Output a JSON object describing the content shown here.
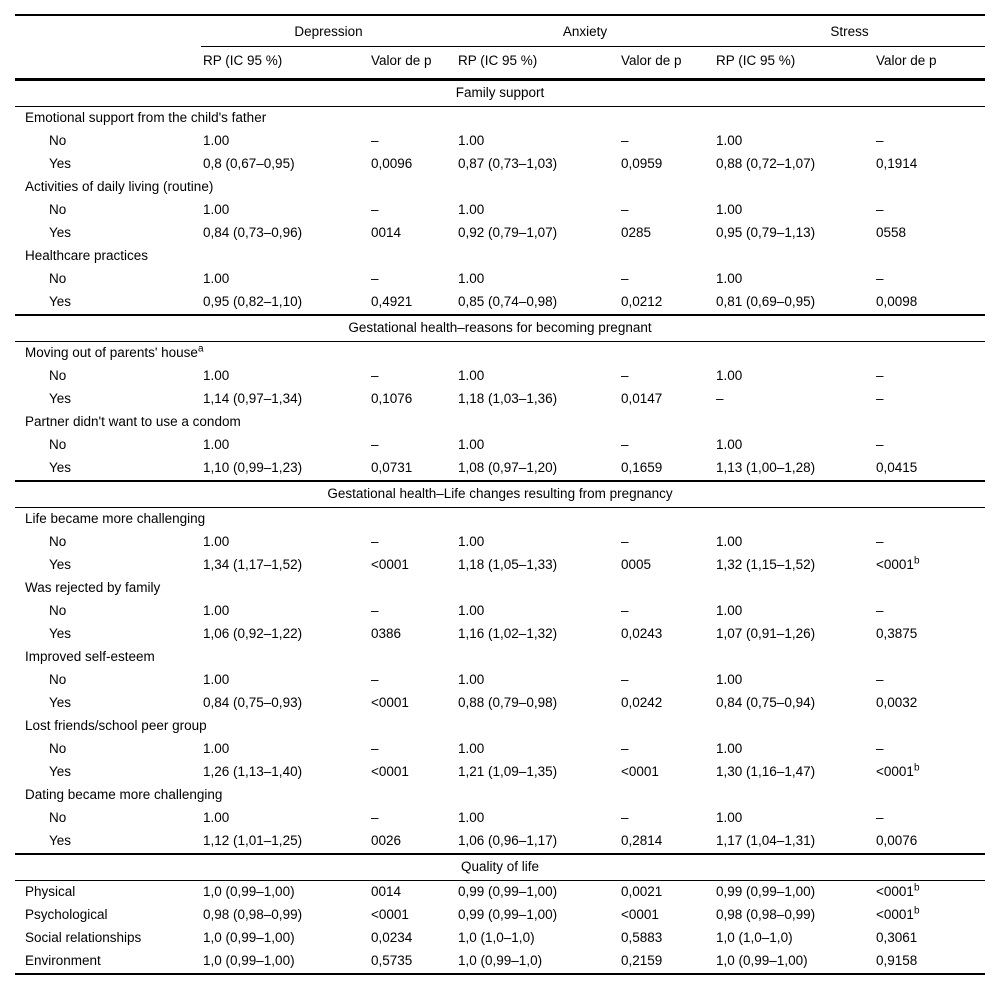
{
  "table": {
    "col_groups": [
      {
        "label": "Depression"
      },
      {
        "label": "Anxiety"
      },
      {
        "label": "Stress"
      }
    ],
    "sub_headers": {
      "rp": "RP (IC 95 %)",
      "p": "Valor de p"
    },
    "sections": [
      {
        "title": "Family support",
        "rows": [
          {
            "label": "Emotional support from the child's father",
            "indent": false,
            "cells": []
          },
          {
            "label": "No",
            "indent": true,
            "cells": [
              "1.00",
              "–",
              "1.00",
              "–",
              "1.00",
              "–"
            ]
          },
          {
            "label": "Yes",
            "indent": true,
            "cells": [
              "0,8 (0,67–0,95)",
              "0,0096",
              "0,87 (0,73–1,03)",
              "0,0959",
              "0,88 (0,72–1,07)",
              "0,1914"
            ]
          },
          {
            "label": "Activities of daily living (routine)",
            "indent": false,
            "cells": []
          },
          {
            "label": "No",
            "indent": true,
            "cells": [
              "1.00",
              "–",
              "1.00",
              "–",
              "1.00",
              "–"
            ]
          },
          {
            "label": "Yes",
            "indent": true,
            "cells": [
              "0,84 (0,73–0,96)",
              "0014",
              "0,92 (0,79–1,07)",
              "0285",
              "0,95 (0,79–1,13)",
              "0558"
            ]
          },
          {
            "label": "Healthcare practices",
            "indent": false,
            "cells": []
          },
          {
            "label": "No",
            "indent": true,
            "cells": [
              "1.00",
              "–",
              "1.00",
              "–",
              "1.00",
              "–"
            ]
          },
          {
            "label": "Yes",
            "indent": true,
            "cells": [
              "0,95 (0,82–1,10)",
              "0,4921",
              "0,85 (0,74–0,98)",
              "0,0212",
              "0,81 (0,69–0,95)",
              "0,0098"
            ]
          }
        ]
      },
      {
        "title": "Gestational health–reasons for becoming pregnant",
        "rows": [
          {
            "label": "Moving out of parents' house^a",
            "indent": false,
            "cells": []
          },
          {
            "label": "No",
            "indent": true,
            "cells": [
              "1.00",
              "–",
              "1.00",
              "–",
              "1.00",
              "–"
            ]
          },
          {
            "label": "Yes",
            "indent": true,
            "cells": [
              "1,14 (0,97–1,34)",
              "0,1076",
              "1,18 (1,03–1,36)",
              "0,0147",
              "–",
              "–"
            ]
          },
          {
            "label": "Partner didn't want to use a condom",
            "indent": false,
            "cells": []
          },
          {
            "label": "No",
            "indent": true,
            "cells": [
              "1.00",
              "–",
              "1.00",
              "–",
              "1.00",
              "–"
            ]
          },
          {
            "label": "Yes",
            "indent": true,
            "cells": [
              "1,10 (0,99–1,23)",
              "0,0731",
              "1,08 (0,97–1,20)",
              "0,1659",
              "1,13 (1,00–1,28)",
              "0,0415"
            ]
          }
        ]
      },
      {
        "title": "Gestational health–Life changes resulting from pregnancy",
        "rows": [
          {
            "label": "Life became more challenging",
            "indent": false,
            "cells": []
          },
          {
            "label": "No",
            "indent": true,
            "cells": [
              "1.00",
              "–",
              "1.00",
              "–",
              "1.00",
              "–"
            ]
          },
          {
            "label": "Yes",
            "indent": true,
            "cells": [
              "1,34 (1,17–1,52)",
              "<0001",
              "1,18 (1,05–1,33)",
              "0005",
              "1,32 (1,15–1,52)",
              "<0001^b"
            ]
          },
          {
            "label": "Was rejected by family",
            "indent": false,
            "cells": []
          },
          {
            "label": "No",
            "indent": true,
            "cells": [
              "1.00",
              "–",
              "1.00",
              "–",
              "1.00",
              "–"
            ]
          },
          {
            "label": "Yes",
            "indent": true,
            "cells": [
              "1,06 (0,92–1,22)",
              "0386",
              "1,16 (1,02–1,32)",
              "0,0243",
              "1,07 (0,91–1,26)",
              "0,3875"
            ]
          },
          {
            "label": "Improved self-esteem",
            "indent": false,
            "cells": []
          },
          {
            "label": "No",
            "indent": true,
            "cells": [
              "1.00",
              "–",
              "1.00",
              "–",
              "1.00",
              "–"
            ]
          },
          {
            "label": "Yes",
            "indent": true,
            "cells": [
              "0,84 (0,75–0,93)",
              "<0001",
              "0,88 (0,79–0,98)",
              "0,0242",
              "0,84 (0,75–0,94)",
              "0,0032"
            ]
          },
          {
            "label": "Lost friends/school peer group",
            "indent": false,
            "cells": []
          },
          {
            "label": "No",
            "indent": true,
            "cells": [
              "1.00",
              "–",
              "1.00",
              "–",
              "1.00",
              "–"
            ]
          },
          {
            "label": "Yes",
            "indent": true,
            "cells": [
              "1,26 (1,13–1,40)",
              "<0001",
              "1,21 (1,09–1,35)",
              "<0001",
              "1,30 (1,16–1,47)",
              "<0001^b"
            ]
          },
          {
            "label": "Dating became more challenging",
            "indent": false,
            "cells": []
          },
          {
            "label": "No",
            "indent": true,
            "cells": [
              "1.00",
              "–",
              "1.00",
              "–",
              "1.00",
              "–"
            ]
          },
          {
            "label": "Yes",
            "indent": true,
            "cells": [
              "1,12 (1,01–1,25)",
              "0026",
              "1,06 (0,96–1,17)",
              "0,2814",
              "1,17 (1,04–1,31)",
              "0,0076"
            ]
          }
        ]
      },
      {
        "title": "Quality of life",
        "rows": [
          {
            "label": "Physical",
            "indent": false,
            "cells": [
              "1,0 (0,99–1,00)",
              "0014",
              "0,99 (0,99–1,00)",
              "0,0021",
              "0,99 (0,99–1,00)",
              "<0001^b"
            ]
          },
          {
            "label": "Psychological",
            "indent": false,
            "cells": [
              "0,98 (0,98–0,99)",
              "<0001",
              "0,99 (0,99–1,00)",
              "<0001",
              "0,98 (0,98–0,99)",
              "<0001^b"
            ]
          },
          {
            "label": "Social relationships",
            "indent": false,
            "cells": [
              "1,0 (0,99–1,00)",
              "0,0234",
              "1,0 (1,0–1,0)",
              "0,5883",
              "1,0 (1,0–1,0)",
              "0,3061"
            ]
          },
          {
            "label": "Environment",
            "indent": false,
            "cells": [
              "1,0 (0,99–1,00)",
              "0,5735",
              "1,0 (0,99–1,0)",
              "0,2159",
              "1,0 (0,99–1,00)",
              "0,9158"
            ]
          }
        ]
      }
    ]
  }
}
